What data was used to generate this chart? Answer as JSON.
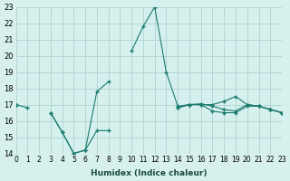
{
  "xlabel": "Humidex (Indice chaleur)",
  "ylabel": "",
  "background_color": "#d6f0ee",
  "grid_color": "#b0d8d4",
  "line_color": "#1a7a6e",
  "xlim": [
    0,
    23
  ],
  "ylim": [
    14,
    23
  ],
  "xticks": [
    0,
    1,
    2,
    3,
    4,
    5,
    6,
    7,
    8,
    9,
    10,
    11,
    12,
    13,
    14,
    15,
    16,
    17,
    18,
    19,
    20,
    21,
    22,
    23
  ],
  "yticks": [
    14,
    15,
    16,
    17,
    18,
    19,
    20,
    21,
    22,
    23
  ],
  "series": [
    {
      "x": [
        0,
        1,
        2,
        3,
        4,
        5,
        6,
        7,
        8,
        9,
        10,
        11,
        12,
        13,
        14,
        15,
        16,
        17,
        18,
        19,
        20,
        21,
        22,
        23
      ],
      "y": [
        17,
        16.8,
        null,
        16.5,
        15.3,
        14,
        14.2,
        17.8,
        18.4,
        null,
        20.3,
        21.8,
        23,
        19,
        16.9,
        17,
        17,
        17,
        17.2,
        17.5,
        17,
        16.9,
        16.7,
        16.5
      ]
    },
    {
      "x": [
        0,
        1,
        2,
        3,
        4,
        5,
        6,
        7,
        8,
        9,
        10,
        11,
        12,
        13,
        14,
        15,
        16,
        17,
        18,
        19,
        20,
        21,
        22,
        23
      ],
      "y": [
        17,
        null,
        null,
        16.5,
        15.3,
        14,
        14.2,
        15.4,
        15.4,
        null,
        null,
        null,
        null,
        null,
        16.8,
        17,
        17,
        16.6,
        16.5,
        16.5,
        16.9,
        16.9,
        16.7,
        16.5
      ]
    },
    {
      "x": [
        0,
        1,
        2,
        3,
        4,
        5,
        6,
        7,
        8,
        9,
        10,
        11,
        12,
        13,
        14,
        15,
        16,
        17,
        18,
        19,
        20,
        21,
        22,
        23
      ],
      "y": [
        17,
        null,
        null,
        null,
        null,
        null,
        null,
        null,
        null,
        null,
        null,
        null,
        null,
        null,
        16.8,
        17,
        17.05,
        16.9,
        16.7,
        16.6,
        17,
        16.9,
        16.7,
        16.5
      ]
    }
  ]
}
